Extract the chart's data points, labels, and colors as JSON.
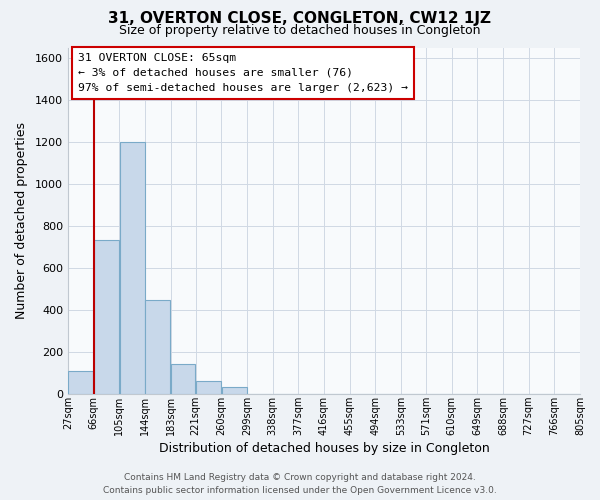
{
  "title": "31, OVERTON CLOSE, CONGLETON, CW12 1JZ",
  "subtitle": "Size of property relative to detached houses in Congleton",
  "xlabel": "Distribution of detached houses by size in Congleton",
  "ylabel": "Number of detached properties",
  "bin_edges": [
    27,
    66,
    105,
    144,
    183,
    221,
    260,
    299,
    338,
    377,
    416,
    455,
    494,
    533,
    571,
    610,
    649,
    688,
    727,
    766,
    805
  ],
  "bin_labels": [
    "27sqm",
    "66sqm",
    "105sqm",
    "144sqm",
    "183sqm",
    "221sqm",
    "260sqm",
    "299sqm",
    "338sqm",
    "377sqm",
    "416sqm",
    "455sqm",
    "494sqm",
    "533sqm",
    "571sqm",
    "610sqm",
    "649sqm",
    "688sqm",
    "727sqm",
    "766sqm",
    "805sqm"
  ],
  "bar_heights": [
    110,
    735,
    1200,
    450,
    145,
    62,
    35,
    0,
    0,
    0,
    0,
    0,
    0,
    0,
    0,
    0,
    0,
    0,
    0,
    0
  ],
  "bar_color": "#c8d8ea",
  "bar_edge_color": "#7aaac8",
  "vline_x": 66,
  "vline_color": "#bb0000",
  "ylim": [
    0,
    1650
  ],
  "yticks": [
    0,
    200,
    400,
    600,
    800,
    1000,
    1200,
    1400,
    1600
  ],
  "annotation_title": "31 OVERTON CLOSE: 65sqm",
  "annotation_line1": "← 3% of detached houses are smaller (76)",
  "annotation_line2": "97% of semi-detached houses are larger (2,623) →",
  "footer_line1": "Contains HM Land Registry data © Crown copyright and database right 2024.",
  "footer_line2": "Contains public sector information licensed under the Open Government Licence v3.0.",
  "background_color": "#eef2f6",
  "plot_background": "#f8fafc",
  "grid_color": "#d0d8e4"
}
